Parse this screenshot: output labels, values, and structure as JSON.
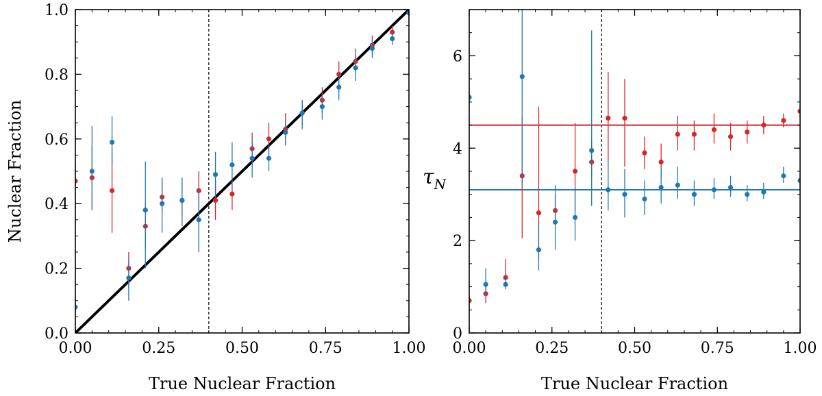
{
  "colors": {
    "red": "#d62728",
    "blue": "#1f77b4",
    "black": "#000000"
  },
  "chart_data": [
    {
      "type": "scatter",
      "xlabel": "True Nuclear Fraction",
      "ylabel": "Nuclear Fraction",
      "xlim": [
        0,
        1
      ],
      "ylim": [
        0,
        1
      ],
      "xticks": [
        0,
        0.25,
        0.5,
        0.75,
        1.0
      ],
      "xtick_labels": [
        "0.00",
        "0.25",
        "0.50",
        "0.75",
        "1.00"
      ],
      "yticks": [
        0,
        0.2,
        0.4,
        0.6,
        0.8,
        1.0
      ],
      "ytick_labels": [
        "0.0",
        "0.2",
        "0.4",
        "0.6",
        "0.8",
        "1.0"
      ],
      "vline": 0.4,
      "identity_line": true,
      "series": [
        {
          "name": "red",
          "color": "red",
          "x": [
            0.0,
            0.05,
            0.11,
            0.16,
            0.21,
            0.26,
            0.32,
            0.37,
            0.42,
            0.47,
            0.53,
            0.58,
            0.63,
            0.68,
            0.74,
            0.79,
            0.84,
            0.89,
            0.95,
            1.0
          ],
          "y": [
            0.47,
            0.48,
            0.44,
            0.2,
            0.33,
            0.42,
            0.41,
            0.44,
            0.41,
            0.43,
            0.57,
            0.6,
            0.63,
            0.68,
            0.72,
            0.8,
            0.84,
            0.89,
            0.93,
            0.99
          ],
          "ylo": [
            0.42,
            0.38,
            0.31,
            0.14,
            0.26,
            0.37,
            0.36,
            0.38,
            0.35,
            0.38,
            0.52,
            0.55,
            0.58,
            0.64,
            0.68,
            0.76,
            0.8,
            0.86,
            0.91,
            0.98
          ],
          "yhi": [
            0.52,
            0.58,
            0.57,
            0.25,
            0.4,
            0.48,
            0.48,
            0.5,
            0.47,
            0.48,
            0.62,
            0.65,
            0.68,
            0.72,
            0.76,
            0.84,
            0.88,
            0.92,
            0.95,
            1.0
          ]
        },
        {
          "name": "blue",
          "color": "blue",
          "x": [
            0.0,
            0.05,
            0.11,
            0.16,
            0.21,
            0.26,
            0.32,
            0.37,
            0.42,
            0.47,
            0.53,
            0.58,
            0.63,
            0.68,
            0.74,
            0.79,
            0.84,
            0.89,
            0.95,
            1.0
          ],
          "y": [
            0.08,
            0.5,
            0.59,
            0.17,
            0.38,
            0.4,
            0.41,
            0.35,
            0.49,
            0.52,
            0.54,
            0.54,
            0.62,
            0.68,
            0.7,
            0.76,
            0.82,
            0.88,
            0.91,
            0.99
          ],
          "ylo": [
            0.04,
            0.38,
            0.52,
            0.1,
            0.2,
            0.31,
            0.33,
            0.25,
            0.42,
            0.45,
            0.48,
            0.5,
            0.58,
            0.63,
            0.66,
            0.72,
            0.78,
            0.85,
            0.89,
            0.98
          ],
          "yhi": [
            0.12,
            0.64,
            0.67,
            0.23,
            0.53,
            0.48,
            0.48,
            0.45,
            0.56,
            0.59,
            0.6,
            0.59,
            0.66,
            0.72,
            0.74,
            0.8,
            0.86,
            0.91,
            0.93,
            1.0
          ]
        }
      ]
    },
    {
      "type": "scatter",
      "xlabel": "True Nuclear Fraction",
      "ylabel": "τ",
      "ylabel_sub": "N",
      "xlim": [
        0,
        1
      ],
      "ylim": [
        0,
        7
      ],
      "xticks": [
        0,
        0.25,
        0.5,
        0.75,
        1.0
      ],
      "xtick_labels": [
        "0.00",
        "0.25",
        "0.50",
        "0.75",
        "1.00"
      ],
      "yticks": [
        0,
        2,
        4,
        6
      ],
      "ytick_labels": [
        "0",
        "2",
        "4",
        "6"
      ],
      "vline": 0.4,
      "hlines": [
        {
          "y": 4.5,
          "color": "red"
        },
        {
          "y": 3.1,
          "color": "blue"
        }
      ],
      "series": [
        {
          "name": "red",
          "color": "red",
          "x": [
            0.0,
            0.05,
            0.11,
            0.16,
            0.21,
            0.26,
            0.32,
            0.37,
            0.42,
            0.47,
            0.53,
            0.58,
            0.63,
            0.68,
            0.74,
            0.79,
            0.84,
            0.89,
            0.95,
            1.0
          ],
          "y": [
            0.7,
            0.85,
            1.2,
            3.4,
            2.6,
            2.65,
            3.5,
            3.7,
            4.65,
            4.65,
            3.9,
            3.7,
            4.3,
            4.3,
            4.4,
            4.25,
            4.35,
            4.5,
            4.6,
            4.8
          ],
          "ylo": [
            0.6,
            0.65,
            0.95,
            2.05,
            1.6,
            2.35,
            2.65,
            3.35,
            3.7,
            3.6,
            3.55,
            3.35,
            3.95,
            3.95,
            4.1,
            3.95,
            4.1,
            4.3,
            4.45,
            4.65
          ],
          "yhi": [
            0.8,
            1.05,
            1.6,
            4.7,
            4.9,
            3.0,
            4.55,
            4.2,
            5.65,
            5.5,
            4.25,
            4.1,
            4.7,
            4.6,
            4.75,
            4.55,
            4.6,
            4.7,
            4.75,
            4.95
          ]
        },
        {
          "name": "blue",
          "color": "blue",
          "x": [
            0.0,
            0.05,
            0.11,
            0.16,
            0.21,
            0.26,
            0.32,
            0.37,
            0.42,
            0.47,
            0.53,
            0.58,
            0.63,
            0.68,
            0.74,
            0.79,
            0.84,
            0.89,
            0.95,
            1.0
          ],
          "y": [
            5.1,
            1.05,
            1.05,
            5.55,
            1.8,
            2.4,
            2.5,
            3.95,
            3.1,
            3.0,
            2.9,
            3.15,
            3.2,
            3.0,
            3.1,
            3.15,
            3.0,
            3.05,
            3.4,
            3.3
          ],
          "ylo": [
            5.0,
            0.8,
            0.95,
            3.2,
            1.35,
            1.8,
            2.0,
            2.75,
            2.65,
            2.5,
            2.55,
            2.8,
            2.9,
            2.75,
            2.9,
            2.95,
            2.85,
            2.9,
            3.25,
            3.15
          ],
          "yhi": [
            5.2,
            1.4,
            1.2,
            7.0,
            2.35,
            3.2,
            3.15,
            6.55,
            3.75,
            3.55,
            3.3,
            3.6,
            3.6,
            3.3,
            3.35,
            3.4,
            3.2,
            3.25,
            3.6,
            3.45
          ]
        }
      ]
    }
  ]
}
